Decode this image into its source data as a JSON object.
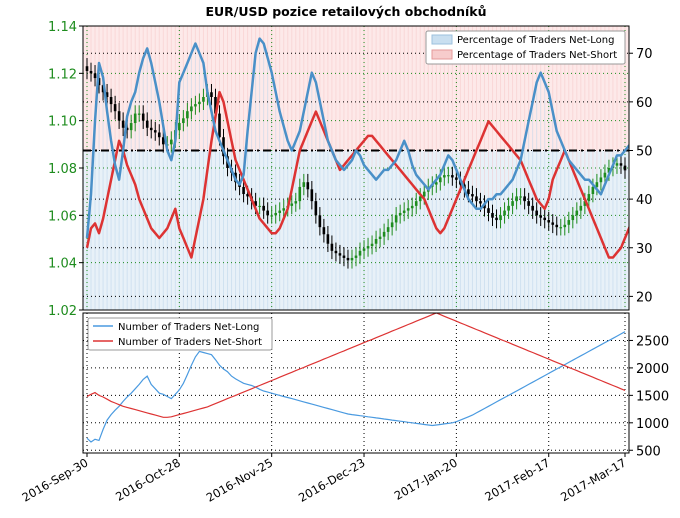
{
  "chart_data": {
    "title": "EUR/USD pozice retailových obchodníků",
    "x_labels": [
      "2016-Sep-30",
      "2016-Oct-28",
      "2016-Nov-25",
      "2016-Dec-23",
      "2017-Jan-20",
      "2017-Feb-17",
      "2017-Mar-17"
    ],
    "panels": [
      {
        "type": "line",
        "name": "price-and-percentage",
        "y_left": {
          "ticks": [
            1.02,
            1.04,
            1.06,
            1.08,
            1.1,
            1.12,
            1.14
          ],
          "ylim": [
            1.02,
            1.14
          ]
        },
        "y_right": {
          "ticks": [
            20,
            30,
            40,
            50,
            60,
            70
          ],
          "ylim": [
            17.2,
            75.6
          ]
        },
        "reference_line": {
          "axis": "right",
          "value": 50
        },
        "price_candles": {
          "name": "EUR/USD",
          "close": [
            1.121,
            1.12,
            1.118,
            1.115,
            1.112,
            1.11,
            1.107,
            1.104,
            1.1,
            1.097,
            1.096,
            1.099,
            1.103,
            1.103,
            1.1,
            1.097,
            1.096,
            1.095,
            1.093,
            1.09,
            1.09,
            1.092,
            1.096,
            1.099,
            1.101,
            1.104,
            1.106,
            1.107,
            1.108,
            1.11,
            1.112,
            1.11,
            1.103,
            1.093,
            1.085,
            1.08,
            1.078,
            1.074,
            1.072,
            1.069,
            1.068,
            1.066,
            1.064,
            1.064,
            1.062,
            1.06,
            1.06,
            1.061,
            1.062,
            1.063,
            1.064,
            1.065,
            1.066,
            1.072,
            1.074,
            1.071,
            1.066,
            1.06,
            1.055,
            1.052,
            1.048,
            1.045,
            1.044,
            1.043,
            1.042,
            1.041,
            1.042,
            1.043,
            1.045,
            1.046,
            1.047,
            1.048,
            1.05,
            1.051,
            1.053,
            1.055,
            1.057,
            1.06,
            1.061,
            1.062,
            1.063,
            1.064,
            1.066,
            1.068,
            1.07,
            1.072,
            1.073,
            1.074,
            1.076,
            1.077,
            1.077,
            1.076,
            1.075,
            1.073,
            1.071,
            1.069,
            1.068,
            1.066,
            1.065,
            1.063,
            1.061,
            1.059,
            1.058,
            1.06,
            1.062,
            1.064,
            1.066,
            1.068,
            1.068,
            1.066,
            1.064,
            1.062,
            1.06,
            1.059,
            1.058,
            1.057,
            1.056,
            1.055,
            1.055,
            1.056,
            1.058,
            1.06,
            1.062,
            1.064,
            1.066,
            1.069,
            1.072,
            1.074,
            1.076,
            1.078,
            1.08,
            1.081,
            1.082,
            1.081,
            1.079
          ],
          "high_offset": 0.0035,
          "low_offset": 0.0035
        },
        "area_series": [
          {
            "name": "Percentage of Traders Net-Long",
            "color_fill": "#c9dff0"
          },
          {
            "name": "Percentage of Traders Net-Short",
            "color_fill": "#f7cccc"
          }
        ],
        "pct_long_series": {
          "name": "Percentage of Traders Net-Long",
          "values": [
            32,
            41,
            56,
            68,
            65,
            58,
            52,
            47,
            44,
            50,
            57,
            60,
            62,
            66,
            69,
            71,
            68,
            64,
            60,
            55,
            50,
            48,
            52,
            64,
            66,
            68,
            70,
            72,
            70,
            68,
            62,
            58,
            54,
            52,
            50,
            48,
            46,
            44,
            43,
            45,
            54,
            62,
            70,
            73,
            72,
            69,
            66,
            62,
            58,
            55,
            52,
            50,
            52,
            54,
            58,
            62,
            66,
            64,
            60,
            56,
            52,
            50,
            48,
            47,
            46,
            47,
            48,
            50,
            49,
            47,
            46,
            45,
            44,
            45,
            46,
            46,
            47,
            48,
            50,
            52,
            50,
            47,
            45,
            44,
            43,
            42,
            43,
            44,
            45,
            47,
            49,
            48,
            46,
            44,
            42,
            40,
            39,
            38,
            38,
            39,
            40,
            40,
            41,
            41,
            42,
            43,
            44,
            46,
            48,
            52,
            56,
            60,
            64,
            66,
            64,
            62,
            58,
            54,
            52,
            50,
            48,
            47,
            46,
            45,
            44,
            44,
            43,
            42,
            41,
            43,
            45,
            47,
            49,
            49,
            50,
            51,
            52,
            50
          ],
          "color": "#4a90c8"
        },
        "pct_short_series": {
          "name": "Percentage of Traders Net-Short",
          "values": [
            30,
            34,
            35,
            33,
            36,
            40,
            44,
            48,
            52,
            50,
            47,
            45,
            43,
            40,
            38,
            36,
            34,
            33,
            32,
            33,
            34,
            36,
            38,
            34,
            32,
            30,
            28,
            32,
            36,
            40,
            46,
            52,
            57,
            62,
            60,
            56,
            52,
            48,
            46,
            44,
            42,
            40,
            38,
            36,
            35,
            34,
            33,
            33,
            34,
            36,
            38,
            42,
            46,
            50,
            52,
            54,
            56,
            58,
            56,
            54,
            52,
            50,
            48,
            46,
            47,
            48,
            49,
            50,
            51,
            52,
            53,
            53,
            52,
            51,
            50,
            49,
            48,
            47,
            46,
            45,
            44,
            43,
            42,
            41,
            40,
            38,
            36,
            34,
            33,
            34,
            36,
            38,
            40,
            42,
            44,
            46,
            48,
            50,
            52,
            54,
            56,
            55,
            54,
            53,
            52,
            51,
            50,
            49,
            48,
            46,
            44,
            42,
            40,
            39,
            38,
            40,
            44,
            46,
            48,
            50,
            48,
            46,
            44,
            42,
            40,
            38,
            36,
            34,
            32,
            30,
            28,
            28,
            29,
            30,
            32,
            34,
            36,
            40
          ],
          "color": "#dd3333"
        }
      },
      {
        "type": "line",
        "name": "trader-counts",
        "y_right": {
          "ticks": [
            500,
            1000,
            1500,
            2000,
            2500
          ],
          "ylim": [
            450,
            3000
          ]
        },
        "series": [
          {
            "name": "Number of Traders Net-Long",
            "color": "#4a9ae0",
            "values": [
              720,
              650,
              700,
              680,
              880,
              1050,
              1150,
              1230,
              1300,
              1390,
              1470,
              1540,
              1620,
              1700,
              1790,
              1850,
              1700,
              1620,
              1540,
              1520,
              1480,
              1440,
              1520,
              1600,
              1720,
              1880,
              2050,
              2200,
              2300,
              2280,
              2260,
              2240,
              2150,
              2050,
              1980,
              1930,
              1850,
              1800,
              1760,
              1720,
              1700,
              1680,
              1650,
              1610,
              1580,
              1560,
              1540,
              1520,
              1500,
              1480,
              1460,
              1440,
              1420,
              1400,
              1380,
              1360,
              1340,
              1320,
              1300,
              1280,
              1260,
              1240,
              1220,
              1200,
              1180,
              1160,
              1150,
              1140,
              1130,
              1120,
              1110,
              1100,
              1090,
              1080,
              1070,
              1060,
              1050,
              1040,
              1030,
              1020,
              1010,
              1000,
              990,
              980,
              970,
              960,
              950,
              960,
              970,
              980,
              990,
              1000,
              1020,
              1050,
              1080,
              1110,
              1140,
              1180,
              1220,
              1260,
              1300,
              1340,
              1380,
              1420,
              1460,
              1500,
              1540,
              1580,
              1620,
              1660,
              1700,
              1740,
              1780,
              1820,
              1860,
              1900,
              1940,
              1980,
              2020,
              2060,
              2100,
              2140,
              2180,
              2220,
              2260,
              2300,
              2340,
              2380,
              2420,
              2460,
              2500,
              2540,
              2580,
              2620,
              2660,
              2700,
              2740,
              2780
            ]
          },
          {
            "name": "Number of Traders Net-Short",
            "color": "#dd3333",
            "values": [
              1480,
              1520,
              1550,
              1500,
              1470,
              1430,
              1390,
              1360,
              1330,
              1300,
              1280,
              1260,
              1240,
              1220,
              1200,
              1180,
              1160,
              1140,
              1120,
              1100,
              1100,
              1110,
              1130,
              1150,
              1170,
              1190,
              1210,
              1230,
              1250,
              1270,
              1290,
              1320,
              1350,
              1380,
              1410,
              1440,
              1470,
              1500,
              1530,
              1560,
              1590,
              1620,
              1650,
              1680,
              1710,
              1740,
              1770,
              1800,
              1830,
              1860,
              1890,
              1920,
              1950,
              1980,
              2010,
              2040,
              2070,
              2100,
              2130,
              2160,
              2190,
              2220,
              2250,
              2280,
              2310,
              2340,
              2370,
              2400,
              2430,
              2460,
              2490,
              2520,
              2550,
              2580,
              2610,
              2640,
              2670,
              2700,
              2730,
              2760,
              2790,
              2820,
              2850,
              2880,
              2910,
              2940,
              2970,
              3000,
              2970,
              2940,
              2910,
              2880,
              2850,
              2820,
              2790,
              2760,
              2730,
              2700,
              2670,
              2640,
              2610,
              2580,
              2550,
              2520,
              2490,
              2460,
              2430,
              2400,
              2370,
              2340,
              2310,
              2280,
              2250,
              2220,
              2190,
              2160,
              2130,
              2100,
              2070,
              2040,
              2010,
              1980,
              1950,
              1920,
              1890,
              1860,
              1830,
              1800,
              1770,
              1740,
              1710,
              1680,
              1650,
              1620,
              1590,
              1560,
              1530,
              1500,
              1470,
              1440,
              1410,
              1380,
              1350,
              1320
            ]
          }
        ]
      }
    ]
  }
}
